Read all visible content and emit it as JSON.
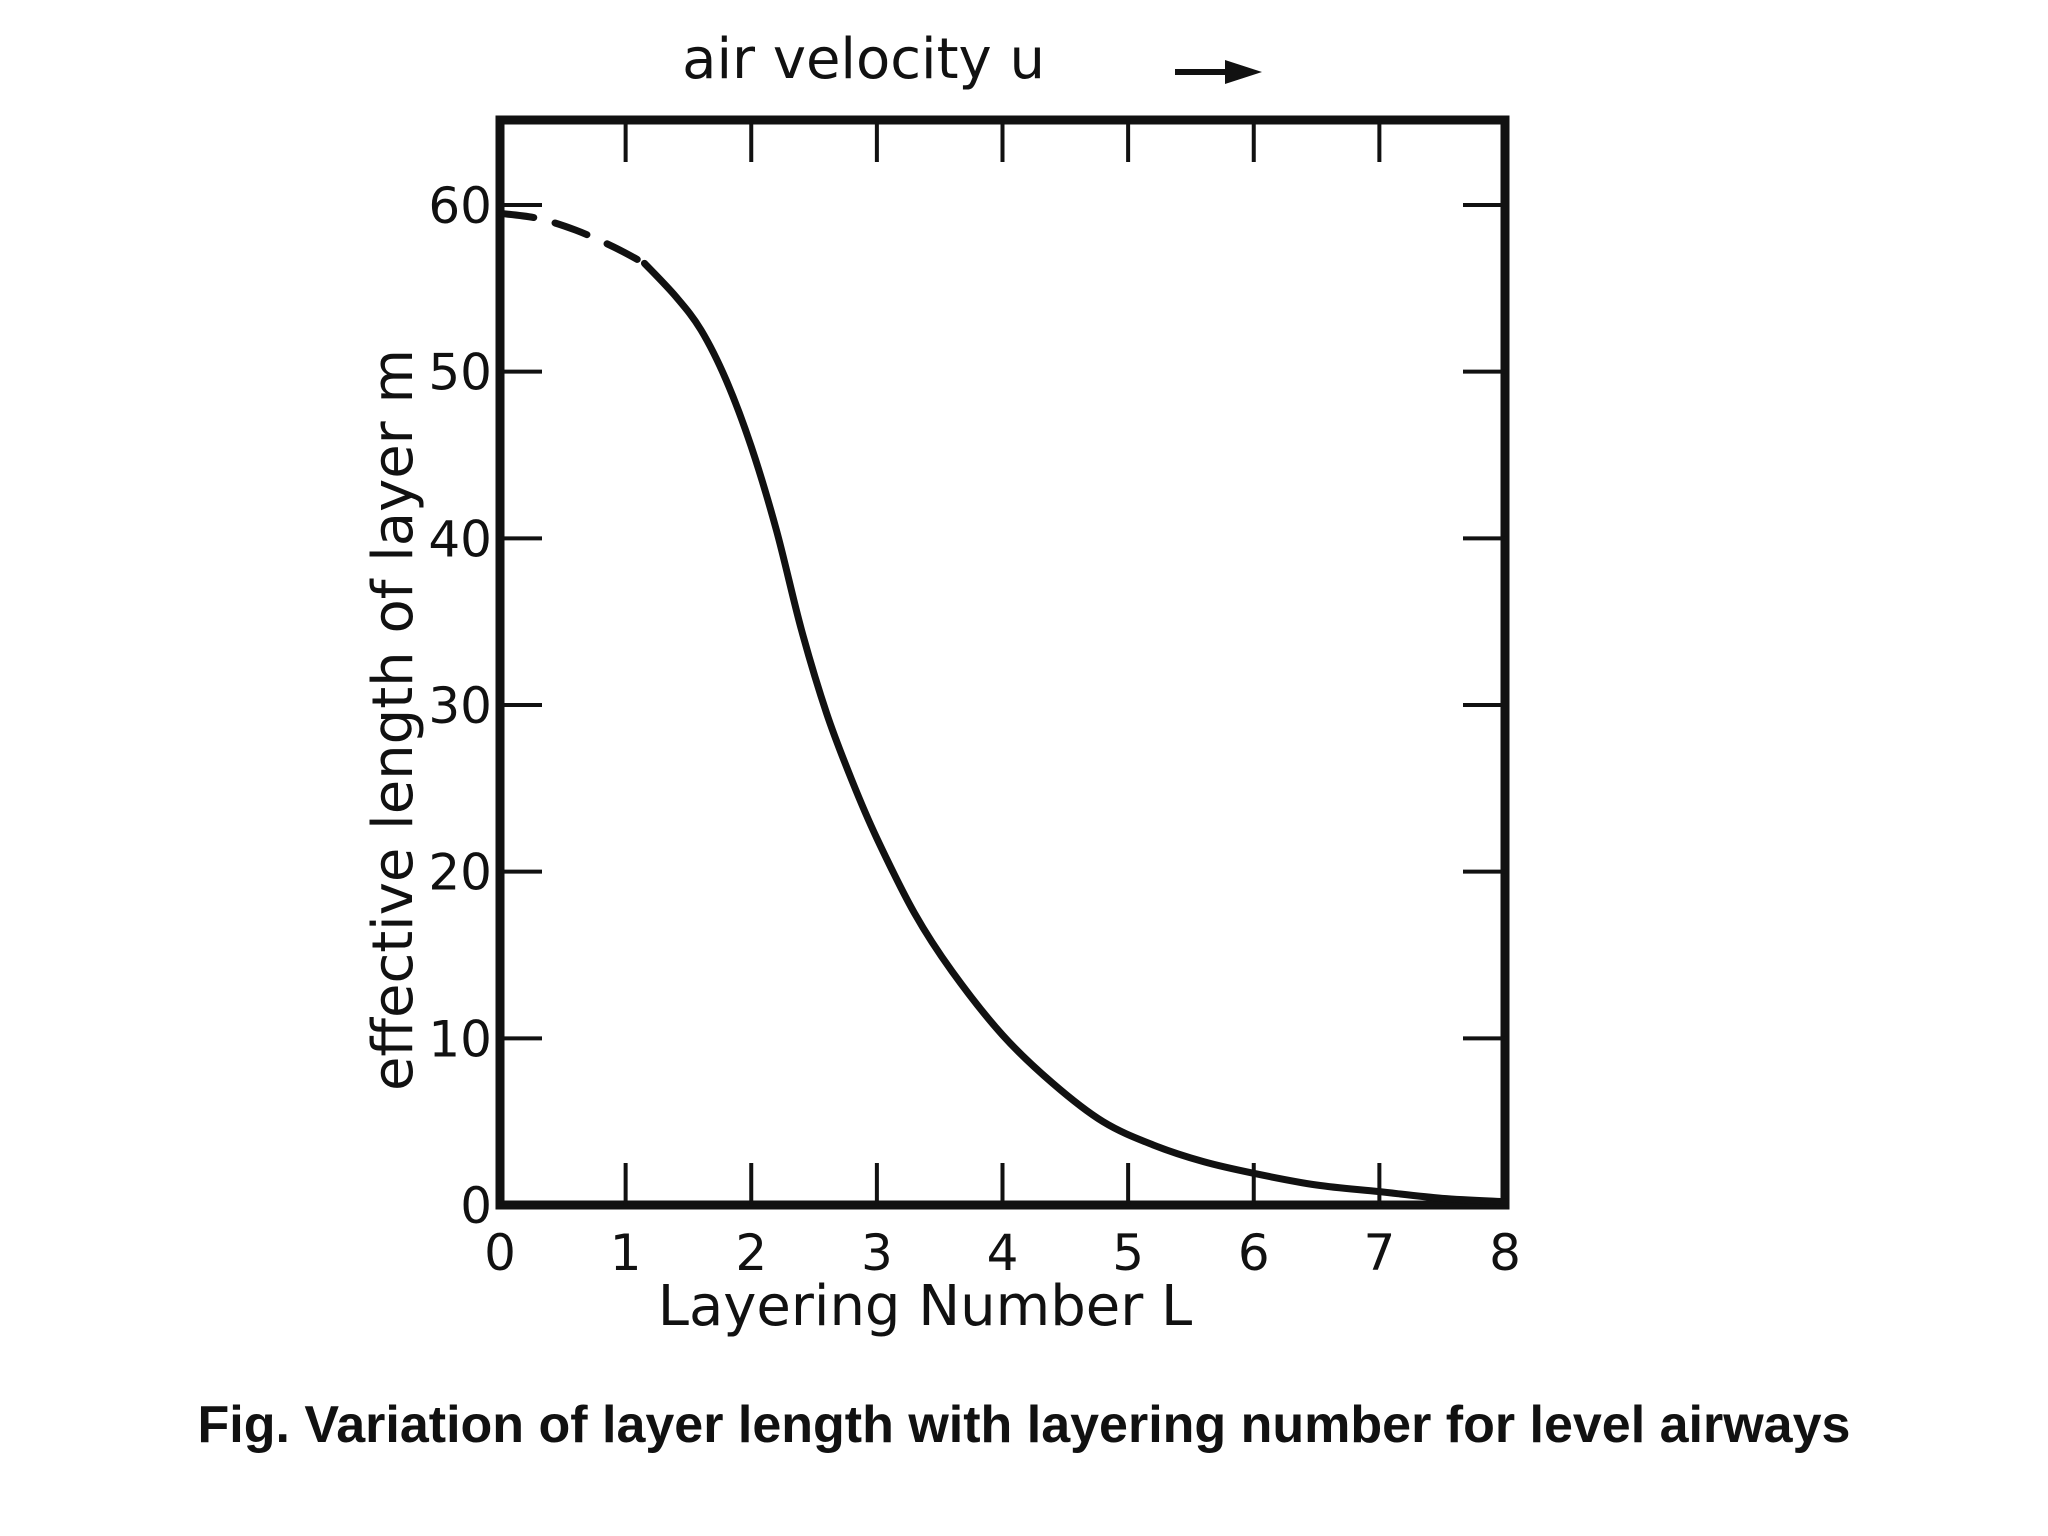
{
  "caption": "Fig. Variation of layer length with layering number for level airways",
  "chart_data": {
    "type": "line",
    "title": "",
    "top_label": "air velocity  u",
    "xlabel": "Layering Number   L",
    "ylabel": "effective length of layer    m",
    "xlim": [
      0,
      8
    ],
    "ylim": [
      0,
      65
    ],
    "x_ticks": [
      "0",
      "1",
      "2",
      "3",
      "4",
      "5",
      "6",
      "7",
      "8"
    ],
    "y_ticks": [
      "0",
      "10",
      "20",
      "30",
      "40",
      "50",
      "60"
    ],
    "grid": false,
    "series": [
      {
        "style": "dashed",
        "x": [
          0,
          0.3,
          0.6,
          0.9,
          1.15
        ],
        "y": [
          59.5,
          59.2,
          58.5,
          57.5,
          56.5
        ]
      },
      {
        "style": "solid",
        "x": [
          1.15,
          1.4,
          1.6,
          1.8,
          2.0,
          2.2,
          2.4,
          2.6,
          2.8,
          3.0,
          3.3,
          3.6,
          4.0,
          4.4,
          4.8,
          5.2,
          5.6,
          6.0,
          6.5,
          7.0,
          7.5,
          8.0
        ],
        "y": [
          56.5,
          54.5,
          52.5,
          49.5,
          45.5,
          40.5,
          34.5,
          29.5,
          25.5,
          22.0,
          17.5,
          14.0,
          10.2,
          7.3,
          5.0,
          3.6,
          2.6,
          1.9,
          1.2,
          0.8,
          0.4,
          0.2
        ]
      }
    ]
  }
}
